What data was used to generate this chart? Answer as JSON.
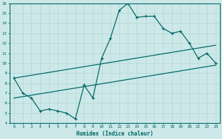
{
  "x": [
    0,
    1,
    2,
    3,
    4,
    5,
    6,
    7,
    8,
    9,
    10,
    11,
    12,
    13,
    14,
    15,
    16,
    17,
    18,
    19,
    20,
    21,
    22,
    23
  ],
  "y_main": [
    8.5,
    7.0,
    6.5,
    5.2,
    5.4,
    5.2,
    5.0,
    4.4,
    7.8,
    6.5,
    10.5,
    12.5,
    15.3,
    16.0,
    14.6,
    14.7,
    14.7,
    13.5,
    13.0,
    13.2,
    12.0,
    10.5,
    11.0,
    10.0
  ],
  "line_color": "#006666",
  "bg_color": "#cce8e8",
  "grid_color": "#b8d8d8",
  "xlabel": "Humidex (Indice chaleur)",
  "ylim": [
    4,
    16
  ],
  "xlim": [
    -0.5,
    23.5
  ],
  "yticks": [
    4,
    5,
    6,
    7,
    8,
    9,
    10,
    11,
    12,
    13,
    14,
    15,
    16
  ],
  "xticks": [
    0,
    1,
    2,
    3,
    4,
    5,
    6,
    7,
    8,
    9,
    10,
    11,
    12,
    13,
    14,
    15,
    16,
    17,
    18,
    19,
    20,
    21,
    22,
    23
  ],
  "trend_upper_start": 8.5,
  "trend_upper_end": 11.8,
  "trend_lower_start": 6.5,
  "trend_lower_end": 9.8
}
